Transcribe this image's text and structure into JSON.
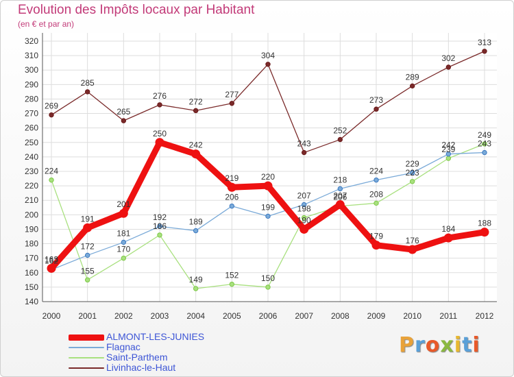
{
  "header": {
    "title": "Evolution des Impôts locaux par Habitant",
    "subtitle": "(en € et par an)"
  },
  "brand": {
    "letters": [
      "P",
      "r",
      "o",
      "x",
      "i",
      "t",
      "i"
    ],
    "colors": [
      "#e8a23a",
      "#5aa0d8",
      "#e85a2a",
      "#8ab840",
      "#e8b830",
      "#5aa0d8",
      "#e85a2a"
    ]
  },
  "chart_data": {
    "type": "line",
    "title": "Evolution des Impôts locaux par Habitant",
    "subtitle": "(en € et par an)",
    "xlabel": "",
    "ylabel": "",
    "categories": [
      "2000",
      "2001",
      "2002",
      "2003",
      "2004",
      "2005",
      "2006",
      "2007",
      "2008",
      "2009",
      "2010",
      "2011",
      "2012"
    ],
    "yticks": [
      140,
      150,
      160,
      170,
      180,
      190,
      200,
      210,
      220,
      230,
      240,
      250,
      260,
      270,
      280,
      290,
      300,
      310,
      320
    ],
    "ylim": [
      140,
      320
    ],
    "grid": true,
    "legend": "bottom-left",
    "series": [
      {
        "name": "Livinhac-le-Haut",
        "color": "#7a2a2a",
        "marker": "#6a1a1a",
        "thick": false,
        "values": [
          269,
          285,
          265,
          276,
          272,
          277,
          304,
          243,
          252,
          273,
          289,
          302,
          313
        ],
        "labels": [
          "269",
          "285",
          "265",
          "276",
          "272",
          "277",
          "304",
          "243",
          "252",
          "273",
          "289",
          "302",
          "313"
        ]
      },
      {
        "name": "Saint-Parthem",
        "color": "#a8e07e",
        "marker": "#7cc846",
        "thick": false,
        "values": [
          224,
          155,
          170,
          186,
          149,
          152,
          150,
          198,
          206,
          208,
          223,
          239,
          249
        ],
        "labels": [
          "224",
          "155",
          "170",
          "186",
          "149",
          "152",
          "150",
          "198",
          "206",
          "208",
          "223",
          "239",
          "249"
        ]
      },
      {
        "name": "Flagnac",
        "color": "#7aaad8",
        "marker": "#3a78c0",
        "thick": false,
        "values": [
          162,
          172,
          181,
          192,
          189,
          206,
          199,
          207,
          218,
          224,
          229,
          242,
          243
        ],
        "labels": [
          "162",
          "172",
          "181",
          "192",
          "189",
          "206",
          "199",
          "207",
          "218",
          "224",
          "229",
          "242",
          "243"
        ]
      },
      {
        "name": "ALMONT-LES-JUNIES",
        "color": "#ee1111",
        "marker": "#ee1111",
        "thick": true,
        "values": [
          163,
          191,
          201,
          250,
          242,
          219,
          220,
          190,
          207,
          179,
          176,
          184,
          188
        ],
        "labels": [
          "163",
          "191",
          "201",
          "250",
          "242",
          "219",
          "220",
          "190",
          "207",
          "179",
          "176",
          "184",
          "188"
        ]
      }
    ],
    "legend_order": [
      "ALMONT-LES-JUNIES",
      "Flagnac",
      "Saint-Parthem",
      "Livinhac-le-Haut"
    ]
  }
}
